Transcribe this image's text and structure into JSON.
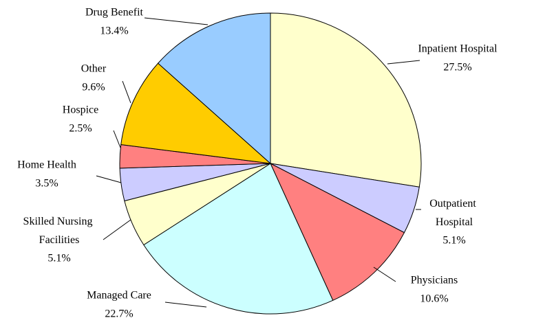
{
  "chart_data": {
    "type": "pie",
    "categories": [
      "Inpatient Hospital",
      "Outpatient Hospital",
      "Physicians",
      "Managed Care",
      "Skilled Nursing Facilities",
      "Home Health",
      "Hospice",
      "Other",
      "Drug Benefit"
    ],
    "values": [
      27.5,
      5.1,
      10.6,
      22.7,
      5.1,
      3.5,
      2.5,
      9.6,
      13.4
    ],
    "value_labels": [
      "27.5%",
      "5.1%",
      "10.6%",
      "22.7%",
      "5.1%",
      "3.5%",
      "2.5%",
      "9.6%",
      "13.4%"
    ],
    "colors": [
      "#ffffcc",
      "#ccccff",
      "#ff8080",
      "#ccffff",
      "#ffffcc",
      "#ccccff",
      "#ff8080",
      "#ffcc00",
      "#99ccff"
    ]
  }
}
